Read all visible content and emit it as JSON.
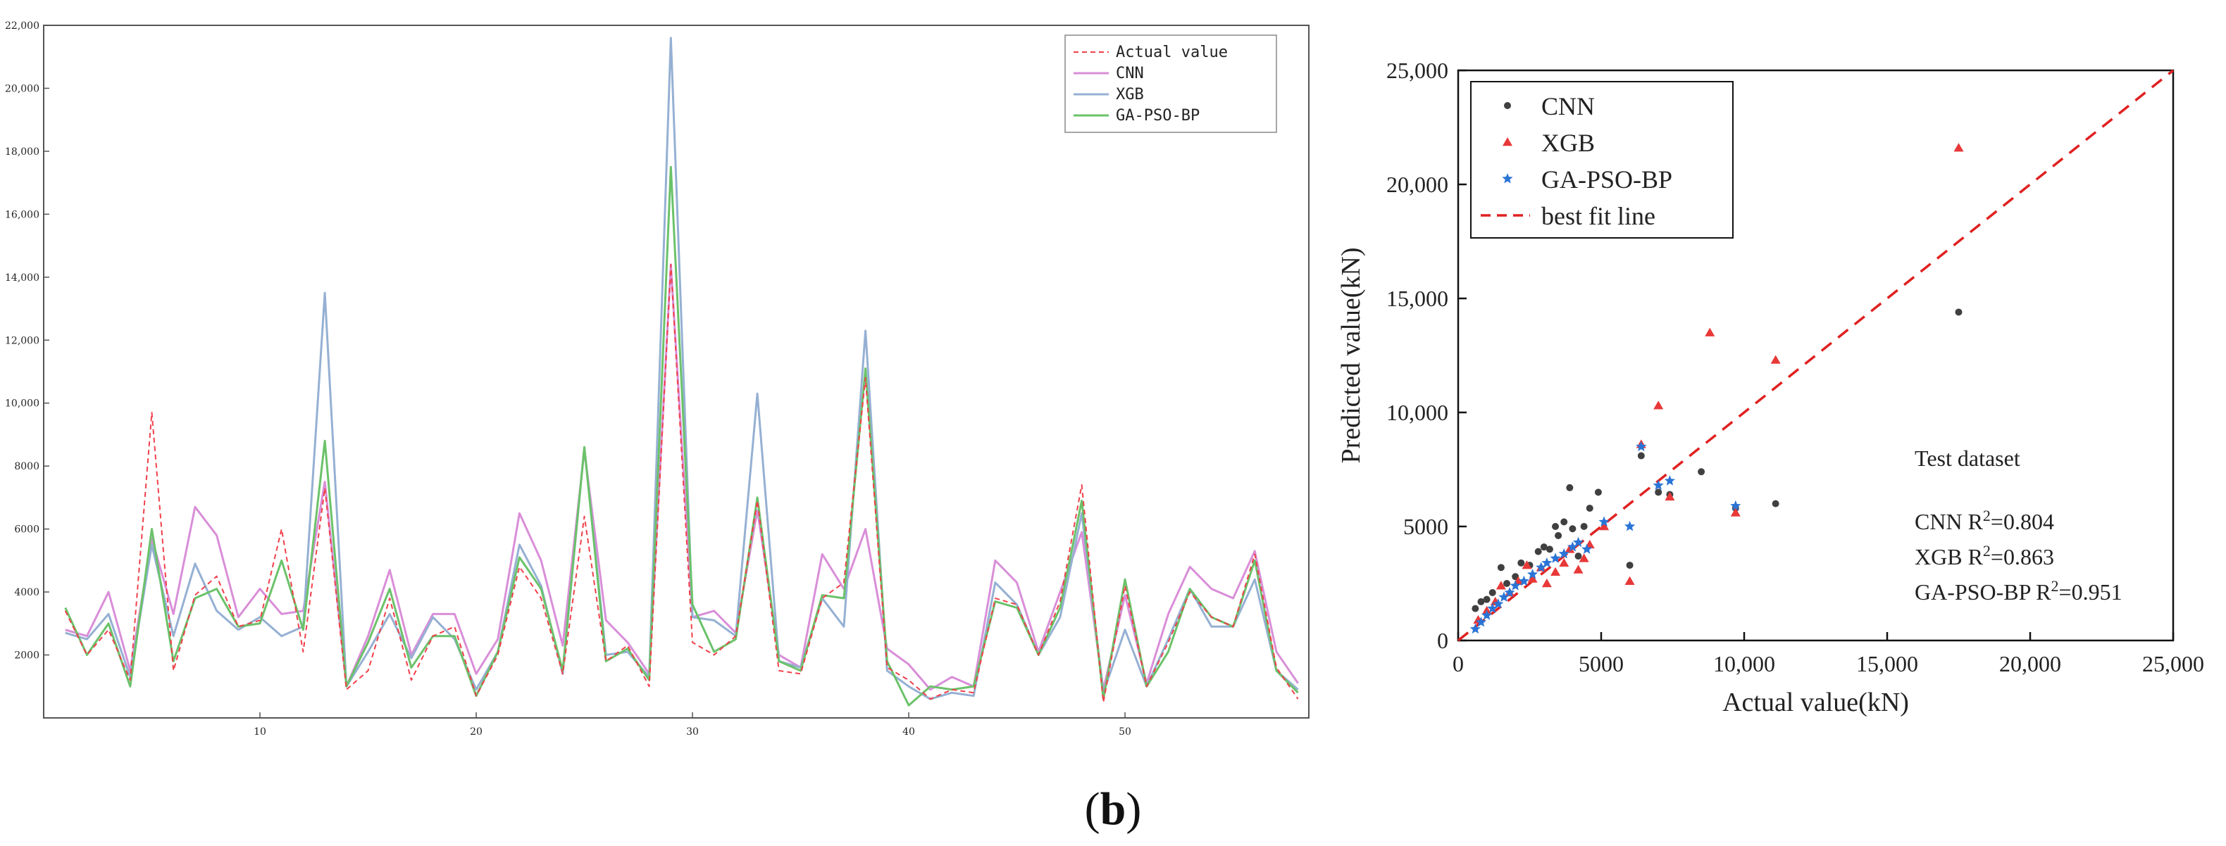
{
  "figure": {
    "caption_prefix": "(",
    "caption_letter": "b",
    "caption_suffix": ")"
  },
  "chart_data": [
    {
      "type": "line",
      "title": "",
      "xlabel": "",
      "ylabel": "",
      "xlim": [
        0,
        58.5
      ],
      "ylim": [
        0,
        22000
      ],
      "xticks": [
        10,
        20,
        30,
        40,
        50
      ],
      "yticks": [
        2000,
        4000,
        6000,
        8000,
        10000,
        12000,
        14000,
        16000,
        18000,
        20000,
        22000
      ],
      "ytick_labels": [
        "2000",
        "4000",
        "6000",
        "8000",
        "10,000",
        "12,000",
        "14,000",
        "16,000",
        "18,000",
        "20,000",
        "22,000"
      ],
      "legend_position": "top-right",
      "x": [
        1,
        2,
        3,
        4,
        5,
        6,
        7,
        8,
        9,
        10,
        11,
        12,
        13,
        14,
        15,
        16,
        17,
        18,
        19,
        20,
        21,
        22,
        23,
        24,
        25,
        26,
        27,
        28,
        29,
        30,
        31,
        32,
        33,
        34,
        35,
        36,
        37,
        38,
        39,
        40,
        41,
        42,
        43,
        44,
        45,
        46,
        47,
        48,
        49,
        50,
        51,
        52,
        53,
        54,
        55,
        56,
        57,
        58
      ],
      "series": [
        {
          "name": "Actual value",
          "color": "#f0404a",
          "dash": "7,5",
          "values": [
            3400,
            2000,
            2800,
            1200,
            9700,
            1500,
            3900,
            4500,
            2900,
            3100,
            6000,
            2100,
            7300,
            900,
            1500,
            3800,
            1200,
            2600,
            2900,
            700,
            2000,
            4800,
            3800,
            1400,
            6400,
            1800,
            2300,
            1000,
            14400,
            2400,
            2000,
            2600,
            6900,
            1500,
            1400,
            3800,
            4300,
            10800,
            1600,
            1200,
            600,
            900,
            800,
            3800,
            3600,
            2000,
            3700,
            7400,
            500,
            4200,
            1000,
            2400,
            4000,
            3200,
            2900,
            5200,
            1600,
            600
          ]
        },
        {
          "name": "CNN",
          "color": "#d98ed8",
          "dash": "",
          "values": [
            2800,
            2600,
            4000,
            1500,
            5700,
            3300,
            6700,
            5800,
            3200,
            4100,
            3300,
            3400,
            7500,
            1000,
            2600,
            4700,
            2000,
            3300,
            3300,
            1400,
            2500,
            6500,
            5000,
            2300,
            8500,
            3100,
            2400,
            1400,
            14400,
            3200,
            3400,
            2700,
            6600,
            2000,
            1600,
            5200,
            4100,
            6000,
            2200,
            1700,
            900,
            1300,
            1000,
            5000,
            4300,
            2100,
            4000,
            5900,
            900,
            3900,
            1100,
            3300,
            4800,
            4100,
            3800,
            5300,
            2100,
            1100
          ]
        },
        {
          "name": "XGB",
          "color": "#95b0d3",
          "dash": "",
          "values": [
            2700,
            2500,
            3300,
            1300,
            5500,
            2600,
            4900,
            3400,
            2800,
            3200,
            2600,
            2900,
            13500,
            1000,
            2100,
            3300,
            1900,
            3200,
            2500,
            900,
            2100,
            5500,
            4200,
            1400,
            8600,
            2000,
            2100,
            1300,
            21600,
            3200,
            3100,
            2600,
            10300,
            1800,
            1600,
            3800,
            2900,
            12300,
            1500,
            1000,
            600,
            800,
            700,
            4300,
            3600,
            2000,
            3200,
            6500,
            800,
            2800,
            1000,
            2500,
            4100,
            2900,
            2900,
            4400,
            1500,
            900
          ]
        },
        {
          "name": "GA-PSO-BP",
          "color": "#6bc26a",
          "dash": "",
          "values": [
            3500,
            2000,
            3000,
            1000,
            6000,
            1800,
            3800,
            4100,
            2900,
            3000,
            5000,
            2800,
            8800,
            1000,
            2400,
            4100,
            1600,
            2600,
            2600,
            700,
            2100,
            5100,
            4100,
            1500,
            8600,
            1800,
            2200,
            1200,
            17500,
            3600,
            2100,
            2500,
            7000,
            1800,
            1500,
            3900,
            3800,
            11100,
            1800,
            400,
            1000,
            900,
            1000,
            3700,
            3500,
            2000,
            3500,
            6900,
            600,
            4400,
            1000,
            2100,
            4100,
            3200,
            2900,
            5000,
            1500,
            800
          ]
        }
      ]
    },
    {
      "type": "scatter",
      "title": "",
      "xlabel": "Actual value(kN)",
      "ylabel": "Predicted value(kN)",
      "xlim": [
        0,
        25000
      ],
      "ylim": [
        0,
        25000
      ],
      "xticks": [
        0,
        5000,
        10000,
        15000,
        20000,
        25000
      ],
      "xtick_labels": [
        "0",
        "5000",
        "10,000",
        "15,000",
        "20,000",
        "25,000"
      ],
      "yticks": [
        0,
        5000,
        10000,
        15000,
        20000,
        25000
      ],
      "ytick_labels": [
        "0",
        "5000",
        "10,000",
        "15,000",
        "20,000",
        "25,000"
      ],
      "legend_position": "top-left",
      "annotation": {
        "heading": "Test dataset",
        "lines": [
          {
            "model": "CNN R",
            "sup": "2",
            "value": "=0.804"
          },
          {
            "model": "XGB R",
            "sup": "2",
            "value": "=0.863"
          },
          {
            "model": "GA-PSO-BP R",
            "sup": "2",
            "value": "=0.951"
          }
        ]
      },
      "series": [
        {
          "name": "CNN",
          "color": "#404040",
          "marker": "dot",
          "points": [
            [
              600,
              1400
            ],
            [
              800,
              1700
            ],
            [
              1000,
              1800
            ],
            [
              1200,
              2100
            ],
            [
              1500,
              3200
            ],
            [
              1700,
              2500
            ],
            [
              2000,
              2800
            ],
            [
              2200,
              3400
            ],
            [
              2500,
              3300
            ],
            [
              2800,
              3900
            ],
            [
              3000,
              4100
            ],
            [
              3200,
              4000
            ],
            [
              3400,
              5000
            ],
            [
              3500,
              4600
            ],
            [
              3700,
              5200
            ],
            [
              3900,
              6700
            ],
            [
              4000,
              4900
            ],
            [
              4200,
              3700
            ],
            [
              4400,
              5000
            ],
            [
              4600,
              5800
            ],
            [
              4900,
              6500
            ],
            [
              6000,
              3300
            ],
            [
              6400,
              8100
            ],
            [
              7000,
              6500
            ],
            [
              7400,
              6400
            ],
            [
              8500,
              7400
            ],
            [
              9700,
              5800
            ],
            [
              11100,
              6000
            ],
            [
              17500,
              14400
            ]
          ]
        },
        {
          "name": "XGB",
          "color": "#e83838",
          "marker": "triangle",
          "points": [
            [
              700,
              900
            ],
            [
              1000,
              1300
            ],
            [
              1300,
              1700
            ],
            [
              1500,
              2400
            ],
            [
              1800,
              2100
            ],
            [
              2100,
              2600
            ],
            [
              2400,
              3300
            ],
            [
              2600,
              2700
            ],
            [
              2900,
              3200
            ],
            [
              3100,
              2500
            ],
            [
              3400,
              3000
            ],
            [
              3700,
              3400
            ],
            [
              3900,
              4000
            ],
            [
              4200,
              3100
            ],
            [
              4400,
              3600
            ],
            [
              4600,
              4200
            ],
            [
              5100,
              5000
            ],
            [
              6000,
              2600
            ],
            [
              6400,
              8600
            ],
            [
              7000,
              10300
            ],
            [
              7400,
              6300
            ],
            [
              8800,
              13500
            ],
            [
              9700,
              5600
            ],
            [
              11100,
              12300
            ],
            [
              17500,
              21600
            ]
          ]
        },
        {
          "name": "GA-PSO-BP",
          "color": "#2a74d6",
          "marker": "star",
          "points": [
            [
              600,
              500
            ],
            [
              800,
              800
            ],
            [
              1000,
              1100
            ],
            [
              1200,
              1400
            ],
            [
              1400,
              1600
            ],
            [
              1600,
              1900
            ],
            [
              1800,
              2100
            ],
            [
              2000,
              2400
            ],
            [
              2300,
              2600
            ],
            [
              2600,
              2900
            ],
            [
              2900,
              3200
            ],
            [
              3100,
              3400
            ],
            [
              3400,
              3600
            ],
            [
              3700,
              3800
            ],
            [
              4000,
              4100
            ],
            [
              4200,
              4300
            ],
            [
              4500,
              4000
            ],
            [
              5100,
              5200
            ],
            [
              6000,
              5000
            ],
            [
              6400,
              8500
            ],
            [
              7000,
              6800
            ],
            [
              7400,
              7000
            ],
            [
              9700,
              5900
            ]
          ]
        },
        {
          "name": "best fit line",
          "color": "#e02020",
          "marker": "dashed-line",
          "points": [
            [
              0,
              0
            ],
            [
              25000,
              25000
            ]
          ]
        }
      ]
    }
  ]
}
